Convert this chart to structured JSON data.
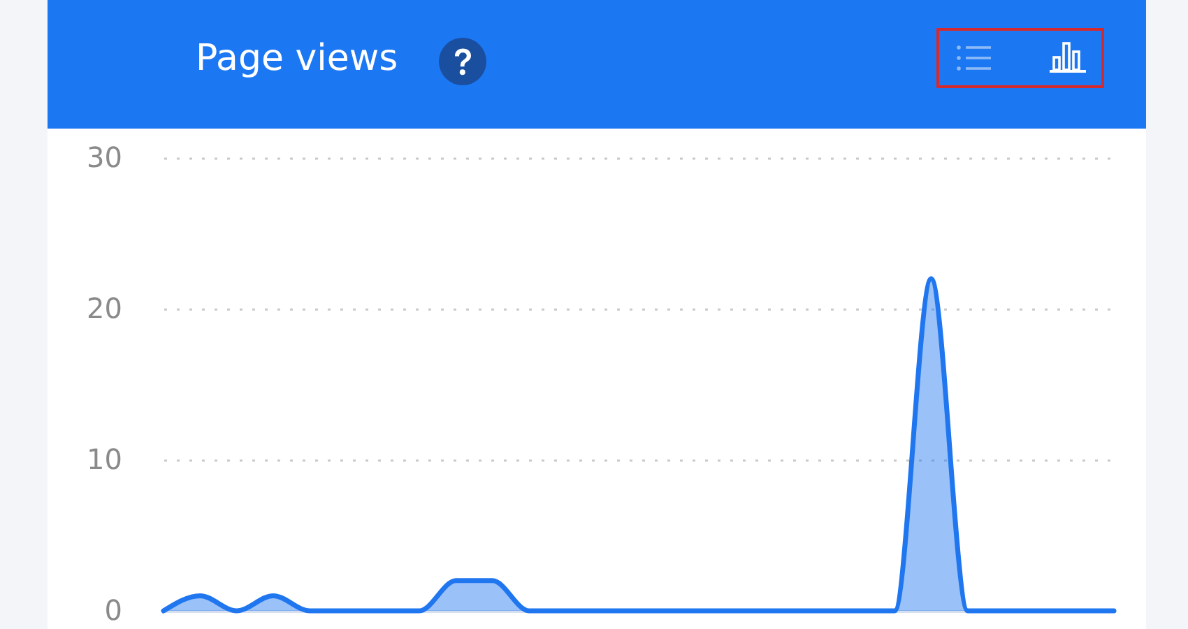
{
  "chart_data": {
    "type": "area",
    "title": "Page views",
    "categories": [
      null,
      null,
      null,
      null,
      null,
      null,
      null,
      null,
      null,
      null,
      null,
      null,
      null,
      null,
      null,
      null,
      null,
      null,
      null,
      null,
      null,
      null,
      null,
      null,
      null,
      null,
      null
    ],
    "series": [
      {
        "color": "#1f76ef",
        "values": [
          0,
          1,
          0,
          1,
          0,
          0,
          0,
          0,
          2,
          2,
          0,
          0,
          0,
          0,
          0,
          0,
          0,
          0,
          0,
          0,
          0,
          22,
          0,
          0,
          0,
          0,
          0
        ]
      }
    ],
    "ylim": [
      0,
      30
    ],
    "yticks": [
      0,
      10,
      20,
      30
    ],
    "grid": "y"
  }
}
